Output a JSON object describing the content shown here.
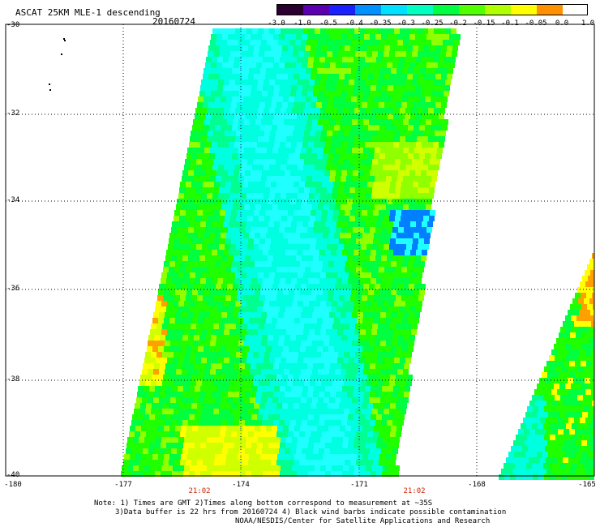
{
  "header": {
    "title": "ASCAT 25KM MLE-1 descending",
    "date": "20160724"
  },
  "colorbar": {
    "colors": [
      "#2a0030",
      "#5a00b0",
      "#1a20ff",
      "#0090ff",
      "#00e0ff",
      "#00ffc0",
      "#00ff40",
      "#50ff00",
      "#b0ff00",
      "#ffff00",
      "#ff9000",
      "#ff2000"
    ],
    "labels": [
      "-3.0",
      "-1.0",
      "-0.5",
      "-0.4",
      "-0.35",
      "-0.3",
      "-0.25",
      "-0.2",
      "-0.15",
      "-0.1",
      "-0.05",
      "0.0",
      "1.0"
    ]
  },
  "axes": {
    "x_ticks": [
      "-180",
      "-177",
      "-174",
      "-171",
      "-168",
      "-165"
    ],
    "y_ticks": [
      "-30",
      "-32",
      "-34",
      "-36",
      "-38",
      "-40"
    ],
    "time_labels": [
      "21:02",
      "21:02"
    ]
  },
  "notes": [
    "Note: 1) Times are GMT 2)Times along bottom correspond to measurement at ~35S",
    "3)Data buffer is 22 hrs from 20160724 4) Black wind barbs indicate possible contamination",
    "NOAA/NESDIS/Center for Satellite Applications and Research"
  ],
  "map_palette": {
    "cyan": "#00ffe0",
    "cyan_light": "#20ffff",
    "green_cyan": "#00ff90",
    "green": "#00ff40",
    "green_bright": "#20ff00",
    "green_yellow": "#90ff00",
    "yellow_green": "#d0ff00",
    "yellow": "#ffff00",
    "orange": "#ffa000",
    "blue": "#0080ff"
  }
}
